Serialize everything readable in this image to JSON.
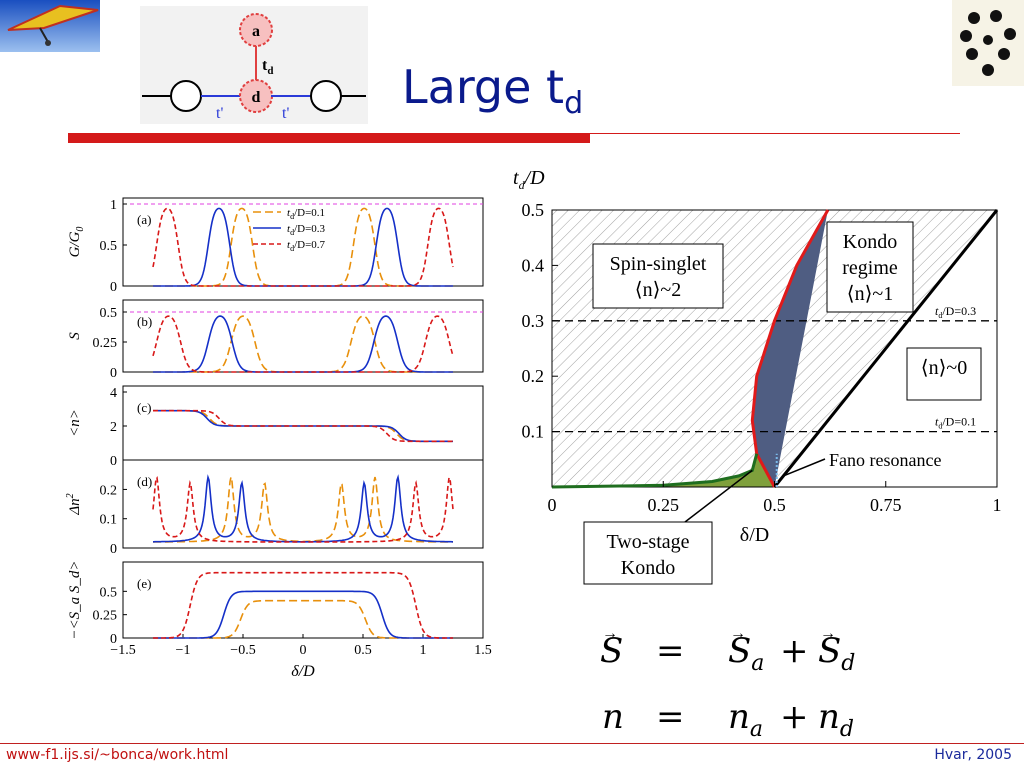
{
  "slide": {
    "title_main": "Large t",
    "title_sub": "d",
    "footer_url": "www-f1.ijs.si/~bonca/work.html",
    "footer_date": "Hvar, 2005",
    "colors": {
      "title": "#0a1a8c",
      "accent_red": "#d41a1a",
      "footer_url": "#c01010"
    }
  },
  "logos": {
    "left": "hang-glider-logo",
    "right": "dots-logo"
  },
  "schematic": {
    "site_a": "a",
    "site_d": "d",
    "hopping_vertical": "t",
    "hopping_vertical_sub": "d",
    "hopping_left": "t'",
    "hopping_right": "t'"
  },
  "equations": {
    "line1": {
      "lhs": "S",
      "rhs_a": "S",
      "sub_a": "a",
      "rhs_d": "S",
      "sub_d": "d"
    },
    "line2": {
      "lhs": "n",
      "rhs_a": "n",
      "sub_a": "a",
      "rhs_d": "n",
      "sub_d": "d"
    },
    "equals": "=",
    "plus": "+"
  },
  "chart_data": [
    {
      "type": "line",
      "panels": [
        {
          "tag": "(a)",
          "ylabel": "G/G",
          "ylabel_sub": "0",
          "yticks": [
            "0",
            "0.5",
            "1"
          ],
          "ylim": [
            0,
            1
          ],
          "ref_line": 1
        },
        {
          "tag": "(b)",
          "ylabel": "S",
          "yticks": [
            "0",
            "0.25",
            "0.5"
          ],
          "ylim": [
            0,
            0.55
          ],
          "ref_line": 0.5
        },
        {
          "tag": "(c)",
          "ylabel": "<n>",
          "yticks": [
            "0",
            "2",
            "4"
          ],
          "ylim": [
            0,
            4
          ]
        },
        {
          "tag": "(d)",
          "ylabel": "Δn",
          "ylabel_sup": "2",
          "yticks": [
            "0",
            "0.1",
            "0.2"
          ],
          "ylim": [
            0,
            0.28
          ]
        },
        {
          "tag": "(e)",
          "ylabel": "−<S_a S_d>",
          "yticks": [
            "0",
            "0.25",
            "0.5"
          ],
          "ylim": [
            0,
            0.75
          ]
        }
      ],
      "xlabel": "δ/D",
      "xticks": [
        "−1.5",
        "−1",
        "−0.5",
        "0",
        "0.5",
        "1",
        "1.5"
      ],
      "xlim": [
        -1.5,
        1.5
      ],
      "legend": [
        {
          "label_pre": "t",
          "label_sub": "d",
          "label_post": "/D=0.1",
          "color": "#e8900c",
          "dash": "8,4"
        },
        {
          "label_pre": "t",
          "label_sub": "d",
          "label_post": "/D=0.3",
          "color": "#1530c8",
          "dash": ""
        },
        {
          "label_pre": "t",
          "label_sub": "d",
          "label_post": "/D=0.7",
          "color": "#d81818",
          "dash": "5,3"
        }
      ],
      "series": [
        {
          "name": "t_d/D=0.1",
          "td": 0.1,
          "inner_edge": 0.48,
          "outer_edge": 0.6
        },
        {
          "name": "t_d/D=0.3",
          "td": 0.3,
          "inner_edge": 0.5,
          "outer_edge": 0.79
        },
        {
          "name": "t_d/D=0.7",
          "td": 0.7,
          "inner_edge": 0.4,
          "outer_edge": 1.22
        }
      ]
    },
    {
      "type": "area",
      "ylabel": "t",
      "ylabel_sub": "d",
      "ylabel_post": "/D",
      "xlabel": "δ/D",
      "xticks": [
        "0",
        "0.25",
        "0.5",
        "0.75",
        "1"
      ],
      "yticks": [
        "0.1",
        "0.2",
        "0.3",
        "0.4",
        "0.5"
      ],
      "xlim": [
        0,
        1
      ],
      "ylim": [
        0,
        0.5
      ],
      "regions": {
        "spin_singlet": {
          "line1": "Spin-singlet",
          "line2": "⟨n⟩~2"
        },
        "kondo": {
          "line1": "Kondo",
          "line2": "regime",
          "line3": "⟨n⟩~1"
        },
        "empty": {
          "line1": "⟨n⟩~0"
        },
        "two_stage": {
          "line1": "Two-stage",
          "line2": "Kondo"
        },
        "fano": "Fano resonance"
      },
      "hlines": [
        {
          "y": 0.3,
          "label_pre": "t",
          "label_sub": "d",
          "label_post": "/D=0.3"
        },
        {
          "y": 0.1,
          "label_pre": "t",
          "label_sub": "d",
          "label_post": "/D=0.1"
        }
      ],
      "red_boundary": [
        [
          0.62,
          0.5
        ],
        [
          0.55,
          0.4
        ],
        [
          0.5,
          0.3
        ],
        [
          0.46,
          0.2
        ],
        [
          0.45,
          0.12
        ],
        [
          0.46,
          0.06
        ],
        [
          0.5,
          0.0
        ]
      ],
      "green_boundary": [
        [
          0.0,
          0.0
        ],
        [
          0.25,
          0.003
        ],
        [
          0.36,
          0.01
        ],
        [
          0.42,
          0.02
        ],
        [
          0.45,
          0.03
        ],
        [
          0.46,
          0.06
        ]
      ],
      "black_boundary": [
        [
          0.5,
          0.0
        ],
        [
          1.0,
          0.5
        ]
      ],
      "colors": {
        "kondo_fill": "#4f5d82",
        "two_stage_fill": "#7fa03c",
        "red": "#e01a1a",
        "green": "#1f6e1f"
      }
    }
  ]
}
